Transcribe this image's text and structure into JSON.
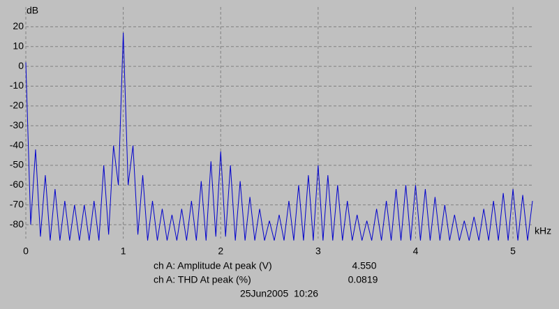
{
  "chart_data": {
    "type": "line",
    "y_label": "dB",
    "x_label": "kHz",
    "color": "#0000cc",
    "grid": true,
    "xlim": [
      0,
      5.2
    ],
    "ylim": [
      -87,
      30
    ],
    "xticks": [
      0,
      1,
      2,
      3,
      4,
      5
    ],
    "yticks": [
      20,
      10,
      0,
      -10,
      -20,
      -30,
      -40,
      -50,
      -60,
      -70,
      -80
    ],
    "x": [
      0,
      0.05,
      0.1,
      0.15,
      0.2,
      0.25,
      0.3,
      0.35,
      0.4,
      0.45,
      0.5,
      0.55,
      0.6,
      0.65,
      0.7,
      0.75,
      0.8,
      0.85,
      0.9,
      0.95,
      1,
      1.05,
      1.1,
      1.15,
      1.2,
      1.25,
      1.3,
      1.35,
      1.4,
      1.45,
      1.5,
      1.55,
      1.6,
      1.65,
      1.7,
      1.75,
      1.8,
      1.85,
      1.9,
      1.95,
      2,
      2.05,
      2.1,
      2.15,
      2.2,
      2.25,
      2.3,
      2.35,
      2.4,
      2.45,
      2.5,
      2.55,
      2.6,
      2.65,
      2.7,
      2.75,
      2.8,
      2.85,
      2.9,
      2.95,
      3,
      3.05,
      3.1,
      3.15,
      3.2,
      3.25,
      3.3,
      3.35,
      3.4,
      3.45,
      3.5,
      3.55,
      3.6,
      3.65,
      3.7,
      3.75,
      3.8,
      3.85,
      3.9,
      3.95,
      4,
      4.05,
      4.1,
      4.15,
      4.2,
      4.25,
      4.3,
      4.35,
      4.4,
      4.45,
      4.5,
      4.55,
      4.6,
      4.65,
      4.7,
      4.75,
      4.8,
      4.85,
      4.9,
      4.95,
      5,
      5.05,
      5.1,
      5.15,
      5.2
    ],
    "values": [
      2,
      -80,
      -42,
      -86,
      -55,
      -88,
      -62,
      -88,
      -68,
      -88,
      -70,
      -88,
      -70,
      -88,
      -68,
      -88,
      -50,
      -85,
      -40,
      -60,
      17,
      -60,
      -40,
      -85,
      -55,
      -88,
      -68,
      -88,
      -72,
      -88,
      -75,
      -88,
      -72,
      -88,
      -68,
      -88,
      -58,
      -88,
      -48,
      -86,
      -43,
      -86,
      -50,
      -88,
      -58,
      -88,
      -66,
      -88,
      -72,
      -88,
      -78,
      -88,
      -75,
      -88,
      -68,
      -88,
      -60,
      -88,
      -55,
      -88,
      -50,
      -88,
      -55,
      -88,
      -60,
      -88,
      -68,
      -88,
      -75,
      -88,
      -78,
      -88,
      -72,
      -88,
      -68,
      -88,
      -62,
      -88,
      -60,
      -88,
      -60,
      -88,
      -62,
      -88,
      -66,
      -88,
      -70,
      -88,
      -75,
      -88,
      -78,
      -88,
      -76,
      -88,
      -72,
      -88,
      -68,
      -88,
      -64,
      -88,
      -62,
      -88,
      -65,
      -88,
      -68
    ]
  },
  "footer": {
    "rows": [
      [
        "ch A: Amplitude At peak (V)",
        "4.550"
      ],
      [
        "ch A: THD At peak (%)",
        "0.0819"
      ]
    ],
    "timestamp": "25Jun2005  10:26"
  }
}
